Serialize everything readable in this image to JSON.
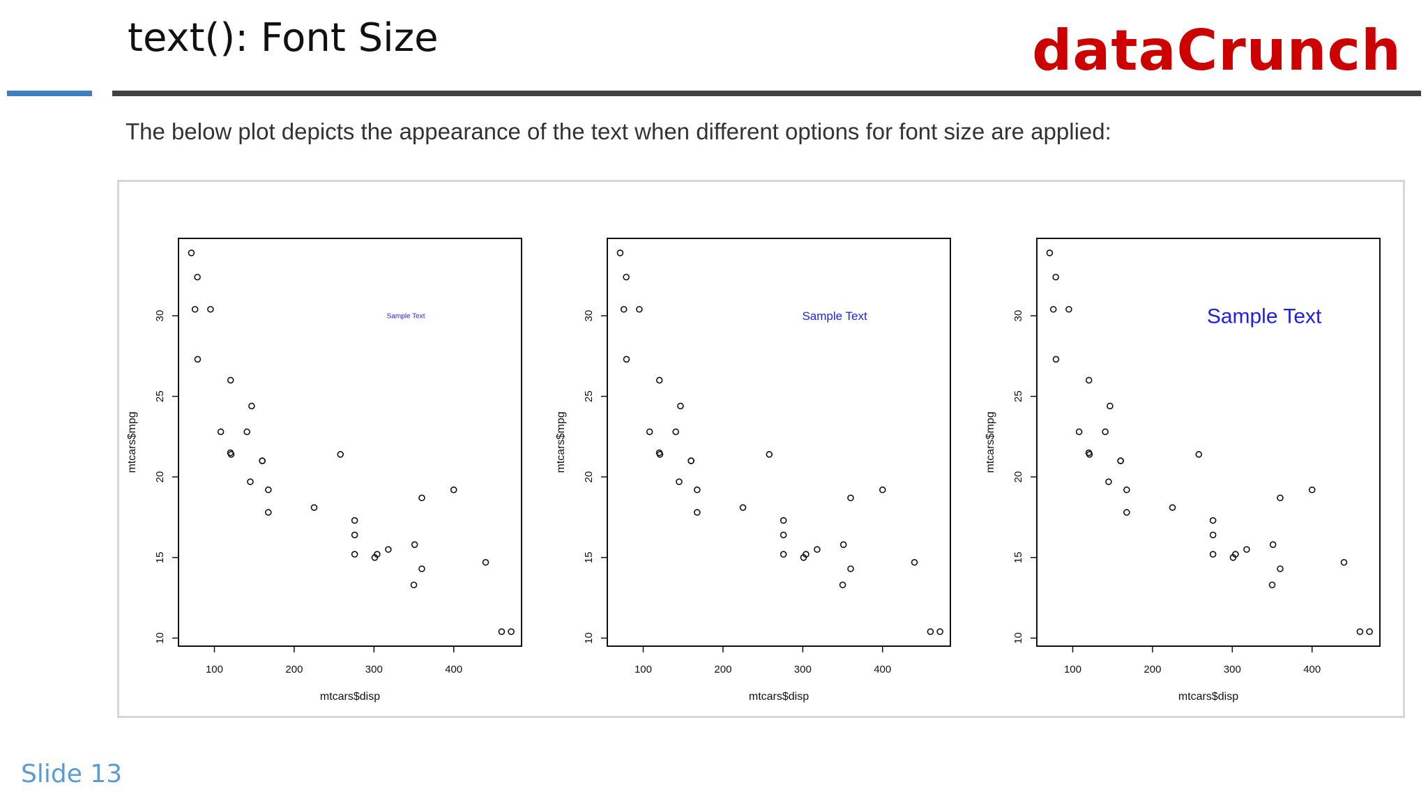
{
  "header": {
    "title": "text(): Font Size",
    "brand": "dataCrunch"
  },
  "intro_text": "The below plot depicts the appearance of the text when different options for font size are applied:",
  "footer": {
    "slide_label": "Slide 13"
  },
  "colors": {
    "brand": "#cc0000",
    "accent_rule": "#3f7fbf",
    "dark_rule": "#404040",
    "sample_text": "#1f1fe8",
    "slide_number": "#5b9bd5"
  },
  "chart_data": [
    {
      "type": "scatter",
      "xlabel": "mtcars$disp",
      "ylabel": "mtcars$mpg",
      "xticks": [
        100,
        200,
        300,
        400
      ],
      "yticks": [
        10,
        15,
        20,
        25,
        30
      ],
      "xlim": [
        55,
        485
      ],
      "ylim": [
        9.5,
        34.8
      ],
      "annotation": {
        "text": "Sample Text",
        "x": 340,
        "y": 30,
        "size": "small"
      },
      "points": [
        [
          160,
          21
        ],
        [
          160,
          21
        ],
        [
          108,
          22.8
        ],
        [
          258,
          21.4
        ],
        [
          360,
          18.7
        ],
        [
          225,
          18.1
        ],
        [
          360,
          14.3
        ],
        [
          146.7,
          24.4
        ],
        [
          140.8,
          22.8
        ],
        [
          167.6,
          19.2
        ],
        [
          167.6,
          17.8
        ],
        [
          275.8,
          16.4
        ],
        [
          275.8,
          17.3
        ],
        [
          275.8,
          15.2
        ],
        [
          472,
          10.4
        ],
        [
          460,
          10.4
        ],
        [
          440,
          14.7
        ],
        [
          78.7,
          32.4
        ],
        [
          75.7,
          30.4
        ],
        [
          71.1,
          33.9
        ],
        [
          120.1,
          21.5
        ],
        [
          318,
          15.5
        ],
        [
          304,
          15.2
        ],
        [
          350,
          13.3
        ],
        [
          400,
          19.2
        ],
        [
          79,
          27.3
        ],
        [
          120.3,
          26
        ],
        [
          95.1,
          30.4
        ],
        [
          351,
          15.8
        ],
        [
          145,
          19.7
        ],
        [
          301,
          15
        ],
        [
          121,
          21.4
        ]
      ]
    },
    {
      "type": "scatter",
      "xlabel": "mtcars$disp",
      "ylabel": "mtcars$mpg",
      "xticks": [
        100,
        200,
        300,
        400
      ],
      "yticks": [
        10,
        15,
        20,
        25,
        30
      ],
      "xlim": [
        55,
        485
      ],
      "ylim": [
        9.5,
        34.8
      ],
      "annotation": {
        "text": "Sample Text",
        "x": 340,
        "y": 30,
        "size": "medium"
      },
      "points": [
        [
          160,
          21
        ],
        [
          160,
          21
        ],
        [
          108,
          22.8
        ],
        [
          258,
          21.4
        ],
        [
          360,
          18.7
        ],
        [
          225,
          18.1
        ],
        [
          360,
          14.3
        ],
        [
          146.7,
          24.4
        ],
        [
          140.8,
          22.8
        ],
        [
          167.6,
          19.2
        ],
        [
          167.6,
          17.8
        ],
        [
          275.8,
          16.4
        ],
        [
          275.8,
          17.3
        ],
        [
          275.8,
          15.2
        ],
        [
          472,
          10.4
        ],
        [
          460,
          10.4
        ],
        [
          440,
          14.7
        ],
        [
          78.7,
          32.4
        ],
        [
          75.7,
          30.4
        ],
        [
          71.1,
          33.9
        ],
        [
          120.1,
          21.5
        ],
        [
          318,
          15.5
        ],
        [
          304,
          15.2
        ],
        [
          350,
          13.3
        ],
        [
          400,
          19.2
        ],
        [
          79,
          27.3
        ],
        [
          120.3,
          26
        ],
        [
          95.1,
          30.4
        ],
        [
          351,
          15.8
        ],
        [
          145,
          19.7
        ],
        [
          301,
          15
        ],
        [
          121,
          21.4
        ]
      ]
    },
    {
      "type": "scatter",
      "xlabel": "mtcars$disp",
      "ylabel": "mtcars$mpg",
      "xticks": [
        100,
        200,
        300,
        400
      ],
      "yticks": [
        10,
        15,
        20,
        25,
        30
      ],
      "xlim": [
        55,
        485
      ],
      "ylim": [
        9.5,
        34.8
      ],
      "annotation": {
        "text": "Sample Text",
        "x": 340,
        "y": 30,
        "size": "large"
      },
      "points": [
        [
          160,
          21
        ],
        [
          160,
          21
        ],
        [
          108,
          22.8
        ],
        [
          258,
          21.4
        ],
        [
          360,
          18.7
        ],
        [
          225,
          18.1
        ],
        [
          360,
          14.3
        ],
        [
          146.7,
          24.4
        ],
        [
          140.8,
          22.8
        ],
        [
          167.6,
          19.2
        ],
        [
          167.6,
          17.8
        ],
        [
          275.8,
          16.4
        ],
        [
          275.8,
          17.3
        ],
        [
          275.8,
          15.2
        ],
        [
          472,
          10.4
        ],
        [
          460,
          10.4
        ],
        [
          440,
          14.7
        ],
        [
          78.7,
          32.4
        ],
        [
          75.7,
          30.4
        ],
        [
          71.1,
          33.9
        ],
        [
          120.1,
          21.5
        ],
        [
          318,
          15.5
        ],
        [
          304,
          15.2
        ],
        [
          350,
          13.3
        ],
        [
          400,
          19.2
        ],
        [
          79,
          27.3
        ],
        [
          120.3,
          26
        ],
        [
          95.1,
          30.4
        ],
        [
          351,
          15.8
        ],
        [
          145,
          19.7
        ],
        [
          301,
          15
        ],
        [
          121,
          21.4
        ]
      ]
    }
  ]
}
